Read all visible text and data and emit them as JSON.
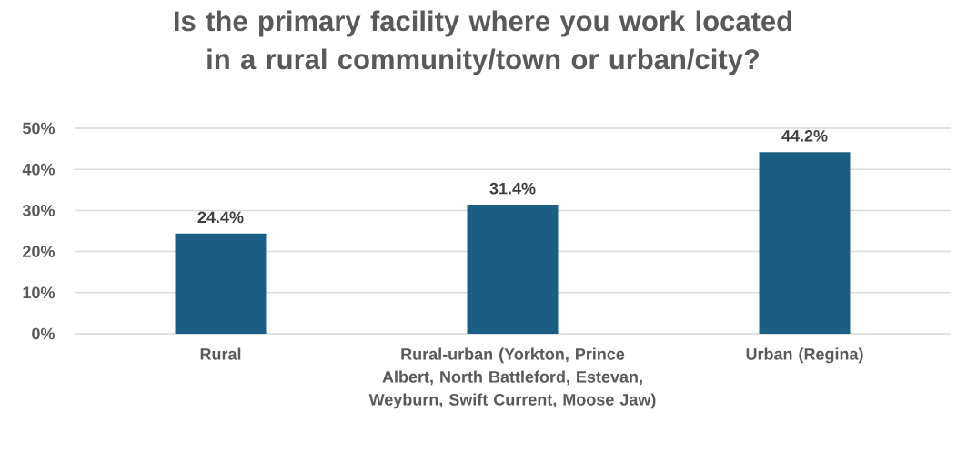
{
  "chart_data": {
    "type": "bar",
    "title": "Is the primary facility where you work located in a rural community/town or urban/city?",
    "categories": [
      "Rural",
      "Rural-urban (Yorkton, Prince Albert, North Battleford, Estevan, Weyburn, Swift Current, Moose Jaw)",
      "Urban (Regina)"
    ],
    "values": [
      24.4,
      31.4,
      44.2
    ],
    "value_labels": [
      "24.4%",
      "31.4%",
      "44.2%"
    ],
    "color": "#1a5f83",
    "ylim": [
      0,
      50
    ],
    "yticks": [
      {
        "value": 0,
        "label": "0%"
      },
      {
        "value": 10,
        "label": "10%"
      },
      {
        "value": 20,
        "label": "20%"
      },
      {
        "value": 30,
        "label": "30%"
      },
      {
        "value": 40,
        "label": "40%"
      },
      {
        "value": 50,
        "label": "50%"
      }
    ],
    "grid": "y"
  }
}
